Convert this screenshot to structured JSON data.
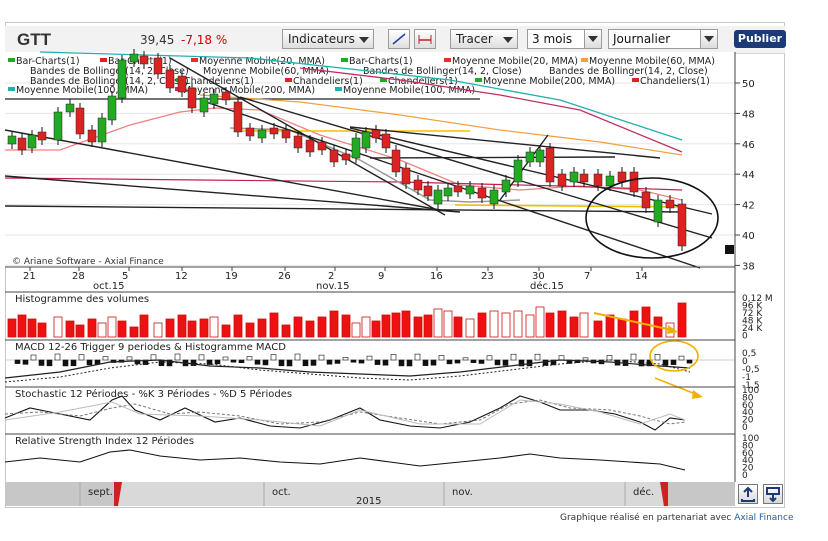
{
  "toolbar": {
    "ticker": "GTT",
    "price": "39,45",
    "change": "-7,18 %",
    "indicators_label": "Indicateurs",
    "draw_label": "Tracer",
    "period_value": "3 mois",
    "interval_value": "Journalier",
    "publish_label": "Publier"
  },
  "legend": {
    "row1": [
      "Bar-Charts(1)",
      "Bar-Charts(1)",
      "Moyenne Mobile(20, MMA)",
      "Bar-Charts(1)",
      "Moyenne Mobile(20, MMA)",
      "Moyenne Mobile(60, MMA)"
    ],
    "row2": [
      "Bandes de Bollinger(14, 2, Close)",
      "Moyenne Mobile(60, MMA)",
      "Bandes de Bollinger(14, 2, Close)",
      "Bandes de Bollinger(14, 2, Close)"
    ],
    "row3": [
      "Bandes de Bollinger(14, 2, Close)",
      "Chandeliers(1)",
      "Chandeliers(1)",
      "Chandeliers(1)",
      "Moyenne Mobile(200, MMA)",
      "Chandeliers(1)"
    ],
    "row4": [
      "Moyenne Mobile(100, MMA)",
      "Moyenne Mobile(200, MMA)",
      "Moyenne Mobile(100, MMA)"
    ],
    "colors": {
      "ma20": "#e03030",
      "ma60": "#f0a040",
      "ma100": "#20b0b0",
      "ma200": "#c03060",
      "up": "#22aa22",
      "down": "#dd2222"
    }
  },
  "main_chart": {
    "copyright": "© Ariane Software - Axial Finance",
    "y_ticks": [
      "50",
      "48",
      "46",
      "44",
      "42",
      "40",
      "38"
    ],
    "last_price_marker": "",
    "x_day_ticks": [
      "21",
      "28",
      "5",
      "12",
      "19",
      "26",
      "2",
      "9",
      "16",
      "23",
      "30",
      "7",
      "14"
    ],
    "x_month_ticks": [
      "oct.15",
      "nov.15",
      "déc.15"
    ]
  },
  "volume_panel": {
    "title": "Histogramme des volumes",
    "y_ticks": [
      "0,12 M",
      "96 K",
      "72 K",
      "48 K",
      "24 K",
      "0"
    ]
  },
  "macd_panel": {
    "title": "MACD 12-26   Trigger 9 periodes & Histogramme MACD",
    "y_ticks": [
      "0,5",
      "0",
      "-0,5",
      "-1",
      "-1,5"
    ]
  },
  "stoch_panel": {
    "title": "Stochastic 12 Périodes  -  %K 3 Périodes  -  %D 5 Périodes",
    "y_ticks": [
      "100",
      "80",
      "60",
      "40",
      "20",
      "0"
    ]
  },
  "rsi_panel": {
    "title": "Relative Strength Index 12 Périodes",
    "y_ticks": [
      "100",
      "80",
      "60",
      "40",
      "20",
      "0"
    ]
  },
  "navigator": {
    "months": [
      "sept.",
      "oct.",
      "nov.",
      "déc."
    ],
    "year": "2015"
  },
  "footer": {
    "credit_prefix": "Graphique réalisé en partenariat avec",
    "credit_link": "Axial Finance"
  }
}
